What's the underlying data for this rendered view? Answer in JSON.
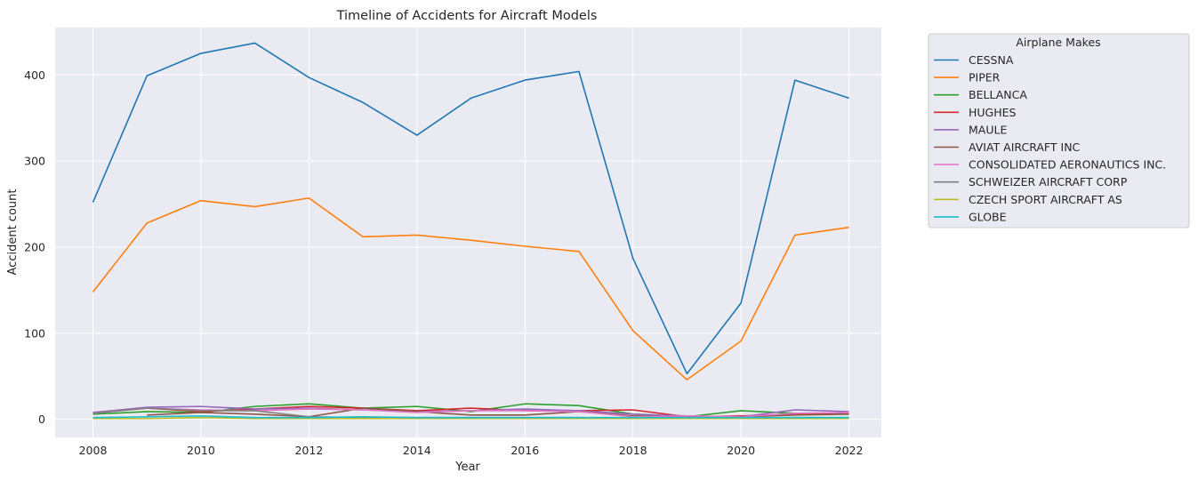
{
  "chart_data": {
    "type": "line",
    "title": "Timeline of Accidents for Aircraft Models",
    "xlabel": "Year",
    "ylabel": "Accident count",
    "xlim": [
      2007.3,
      2022.6
    ],
    "ylim": [
      -21,
      455
    ],
    "x_ticks": [
      2008,
      2010,
      2012,
      2014,
      2016,
      2018,
      2020,
      2022
    ],
    "y_ticks": [
      0,
      100,
      200,
      300,
      400
    ],
    "grid": true,
    "legend": {
      "title": "Airplane Makes",
      "placement": "outside-top-right"
    },
    "x": [
      2008,
      2009,
      2010,
      2011,
      2012,
      2013,
      2014,
      2015,
      2016,
      2017,
      2018,
      2019,
      2020,
      2021,
      2022
    ],
    "series": [
      {
        "name": "CESSNA",
        "color": "#1f77b4",
        "values": [
          252,
          399,
          425,
          437,
          397,
          368,
          330,
          373,
          394,
          404,
          187,
          53,
          135,
          394,
          373
        ]
      },
      {
        "name": "PIPER",
        "color": "#ff7f0e",
        "values": [
          148,
          228,
          254,
          247,
          257,
          212,
          214,
          208,
          201,
          195,
          103,
          46,
          91,
          214,
          223
        ]
      },
      {
        "name": "BELLANCA",
        "color": "#2ca02c",
        "values": [
          6,
          9,
          8,
          15,
          18,
          13,
          15,
          9,
          18,
          16,
          6,
          3,
          10,
          7,
          6
        ]
      },
      {
        "name": "HUGHES",
        "color": "#d62728",
        "values": [
          8,
          13,
          9,
          12,
          15,
          13,
          10,
          13,
          10,
          10,
          11,
          3,
          4,
          6,
          8
        ]
      },
      {
        "name": "MAULE",
        "color": "#9467bd",
        "values": [
          8,
          14,
          15,
          12,
          13,
          11,
          9,
          10,
          12,
          10,
          6,
          4,
          3,
          11,
          9
        ]
      },
      {
        "name": "AVIAT AIRCRAFT INC",
        "color": "#8c564b",
        "values": [
          null,
          5,
          8,
          6,
          3,
          13,
          9,
          5,
          5,
          9,
          4,
          3,
          3,
          5,
          6
        ]
      },
      {
        "name": "CONSOLIDATED AERONAUTICS INC.",
        "color": "#e377c2",
        "values": [
          7,
          13,
          11,
          10,
          12,
          11,
          8,
          10,
          10,
          9,
          3,
          4,
          3,
          7,
          8
        ]
      },
      {
        "name": "SCHWEIZER AIRCRAFT CORP",
        "color": "#7f7f7f",
        "values": [
          7,
          13,
          10,
          10,
          3,
          2,
          2,
          2,
          2,
          2,
          1,
          1,
          2,
          2,
          2
        ]
      },
      {
        "name": "CZECH SPORT AIRCRAFT AS",
        "color": "#bcbd22",
        "values": [
          1,
          1,
          2,
          1,
          1,
          1,
          1,
          1,
          1,
          1,
          1,
          1,
          1,
          1,
          1
        ]
      },
      {
        "name": "GLOBE",
        "color": "#17becf",
        "values": [
          2,
          3,
          4,
          2,
          2,
          3,
          2,
          2,
          2,
          2,
          2,
          2,
          2,
          2,
          2
        ]
      }
    ]
  }
}
